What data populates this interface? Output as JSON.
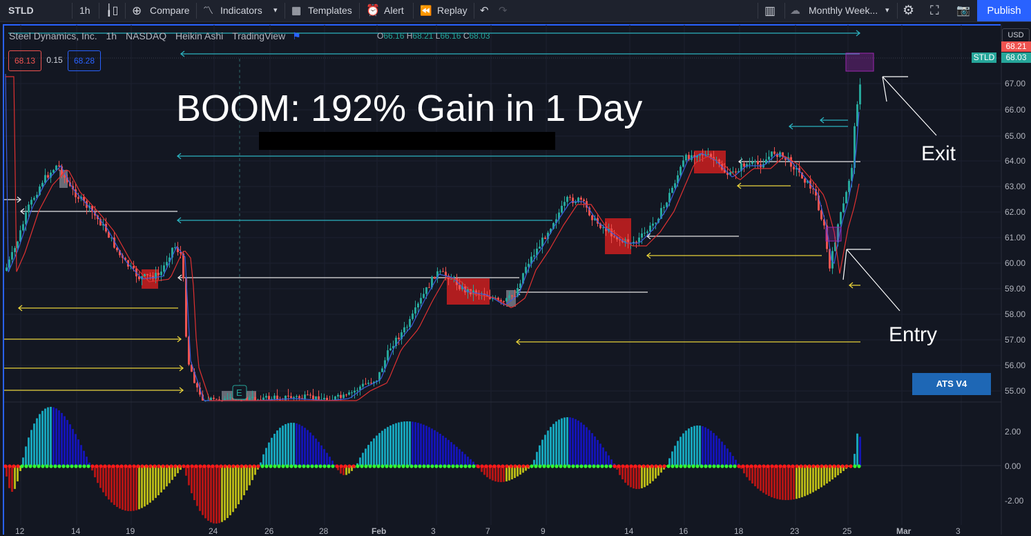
{
  "toolbar": {
    "symbol": "STLD",
    "interval": "1h",
    "compare": "Compare",
    "indicators": "Indicators",
    "templates": "Templates",
    "alert": "Alert",
    "replay": "Replay",
    "layout_name": "Monthly Week...",
    "publish": "Publish"
  },
  "legend": {
    "name": "Steel Dynamics, Inc.",
    "interval": "1h",
    "exchange": "NASDAQ",
    "chart_style": "Heikin Ashi",
    "source": "TradingView",
    "o_label": "O",
    "o": "66.16",
    "h_label": "H",
    "h": "68.21",
    "l_label": "L",
    "l": "66.16",
    "c_label": "C",
    "c": "68.03"
  },
  "price_boxes": {
    "bid": "68.13",
    "spread": "0.15",
    "ask": "68.28"
  },
  "headline": "BOOM: 192% Gain in 1 Day",
  "annotations": {
    "exit": "Exit",
    "entry": "Entry"
  },
  "indicator_badge": "ATS V4",
  "price_scale": {
    "currency": "USD",
    "high_tag": "68.21",
    "symbol_tag": "STLD",
    "last_tag": "68.03",
    "ticks": [
      "67.00",
      "66.00",
      "65.00",
      "64.00",
      "63.00",
      "62.00",
      "61.00",
      "60.00",
      "59.00",
      "58.00",
      "57.00",
      "56.00",
      "55.00"
    ],
    "osc_ticks": [
      "2.00",
      "0.00",
      "-2.00"
    ]
  },
  "time_scale": [
    "12",
    "14",
    "19",
    "24",
    "26",
    "28",
    "Feb",
    "3",
    "7",
    "9",
    "14",
    "16",
    "18",
    "23",
    "25",
    "Mar",
    "3"
  ],
  "colors": {
    "bull": "#26a69a",
    "bear": "#ef5350",
    "hist_cyan": "#17a2b8",
    "hist_blue": "#1414b4",
    "hist_red": "#b01515",
    "hist_yellow": "#b5b517",
    "accent": "#2962ff"
  }
}
